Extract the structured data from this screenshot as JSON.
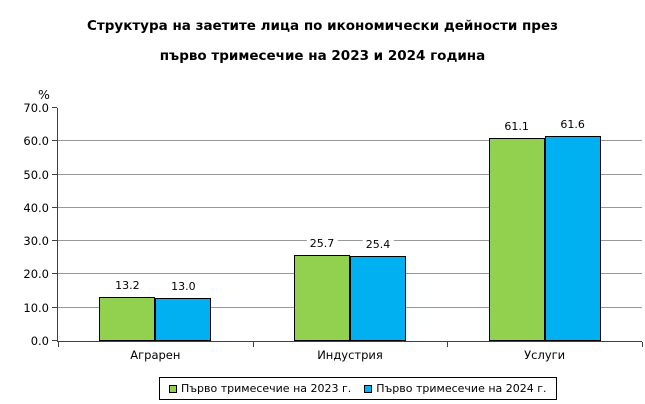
{
  "title": {
    "line1": "Структура на заетите лица по икономически дейности през",
    "line2": "първо тримесечие на 2023 и 2024 година"
  },
  "chart_data": {
    "type": "bar",
    "categories": [
      "Аграрен",
      "Индустрия",
      "Услуги"
    ],
    "series": [
      {
        "name": "Първо тримесечие на 2023 г.",
        "color": "#92D050",
        "values": [
          13.2,
          25.7,
          61.1
        ]
      },
      {
        "name": "Първо тримесечие на 2024 г.",
        "color": "#00B0F0",
        "values": [
          13.0,
          25.4,
          61.6
        ]
      }
    ],
    "ylabel": "%",
    "xlabel": "",
    "ylim": [
      0,
      70
    ],
    "ytick_step": 10,
    "ytick_labels": [
      "0.0",
      "10.0",
      "20.0",
      "30.0",
      "40.0",
      "50.0",
      "60.0",
      "70.0"
    ],
    "grid": true,
    "data_labels": true,
    "legend_position": "bottom"
  },
  "colors": {
    "series_2023": "#92D050",
    "series_2024": "#00B0F0",
    "gridline": "#999999",
    "axis": "#404040",
    "bar_border": "#000000",
    "text": "#000000",
    "background": "#ffffff"
  }
}
